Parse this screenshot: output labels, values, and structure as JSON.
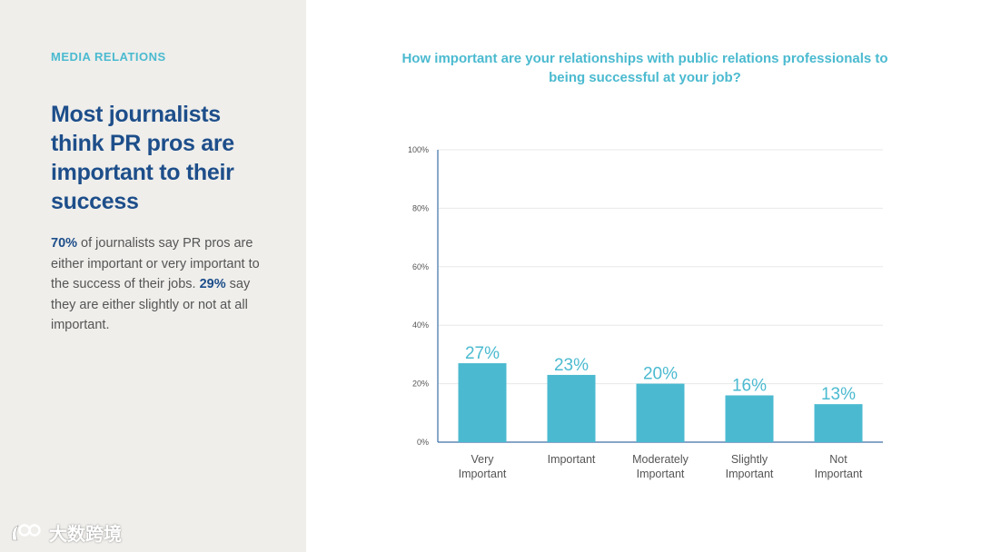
{
  "left": {
    "section_label": "MEDIA RELATIONS",
    "headline": "Most journalists think PR pros are important to their success",
    "body": {
      "stat1": "70%",
      "text1": " of journalists say PR pros are either important or very important to the success of their jobs. ",
      "stat2": "29%",
      "text2": " say they are either slightly or not at all important."
    }
  },
  "watermark": {
    "text": "大数跨境"
  },
  "colors": {
    "accent": "#4bbad0",
    "headline": "#1d4e8a",
    "panel_bg": "#efeeeb",
    "bar": "#4bbad0"
  },
  "chart_data": {
    "type": "bar",
    "title": "How important are your relationships with public relations professionals to being successful at your job?",
    "categories": [
      [
        "Very",
        "Important"
      ],
      [
        "Important"
      ],
      [
        "Moderately",
        "Important"
      ],
      [
        "Slightly",
        "Important"
      ],
      [
        "Not",
        "Important"
      ]
    ],
    "values": [
      27,
      23,
      20,
      16,
      13
    ],
    "data_labels": [
      "27%",
      "23%",
      "20%",
      "16%",
      "13%"
    ],
    "yticks": [
      "0%",
      "20%",
      "40%",
      "60%",
      "80%",
      "100%"
    ],
    "ytick_values": [
      0,
      20,
      40,
      60,
      80,
      100
    ],
    "ylim": [
      0,
      100
    ],
    "grid": true,
    "legend": "none"
  }
}
